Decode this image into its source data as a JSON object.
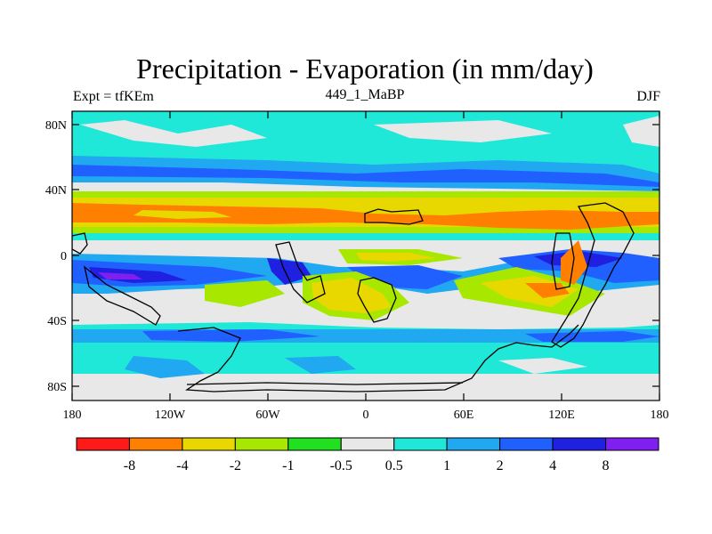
{
  "header": {
    "title": "Precipitation - Evaporation (in mm/day)",
    "left": "Expt = tfKEm",
    "center": "449_1_MaBP",
    "right": "DJF"
  },
  "axes": {
    "x_ticks": [
      "180",
      "120W",
      "60W",
      "0",
      "60E",
      "120E",
      "180"
    ],
    "y_ticks": [
      "80N",
      "40N",
      "0",
      "40S",
      "80S"
    ]
  },
  "colorbar": {
    "labels": [
      "-8",
      "-4",
      "-2",
      "-1",
      "-0.5",
      "0.5",
      "1",
      "2",
      "4",
      "8"
    ],
    "colors": [
      "#ff1a1a",
      "#ff8000",
      "#e8d800",
      "#a8e800",
      "#20e020",
      "#e8e8e8",
      "#20e8d8",
      "#20a8f0",
      "#2060ff",
      "#2020e0",
      "#8020f0"
    ]
  }
}
